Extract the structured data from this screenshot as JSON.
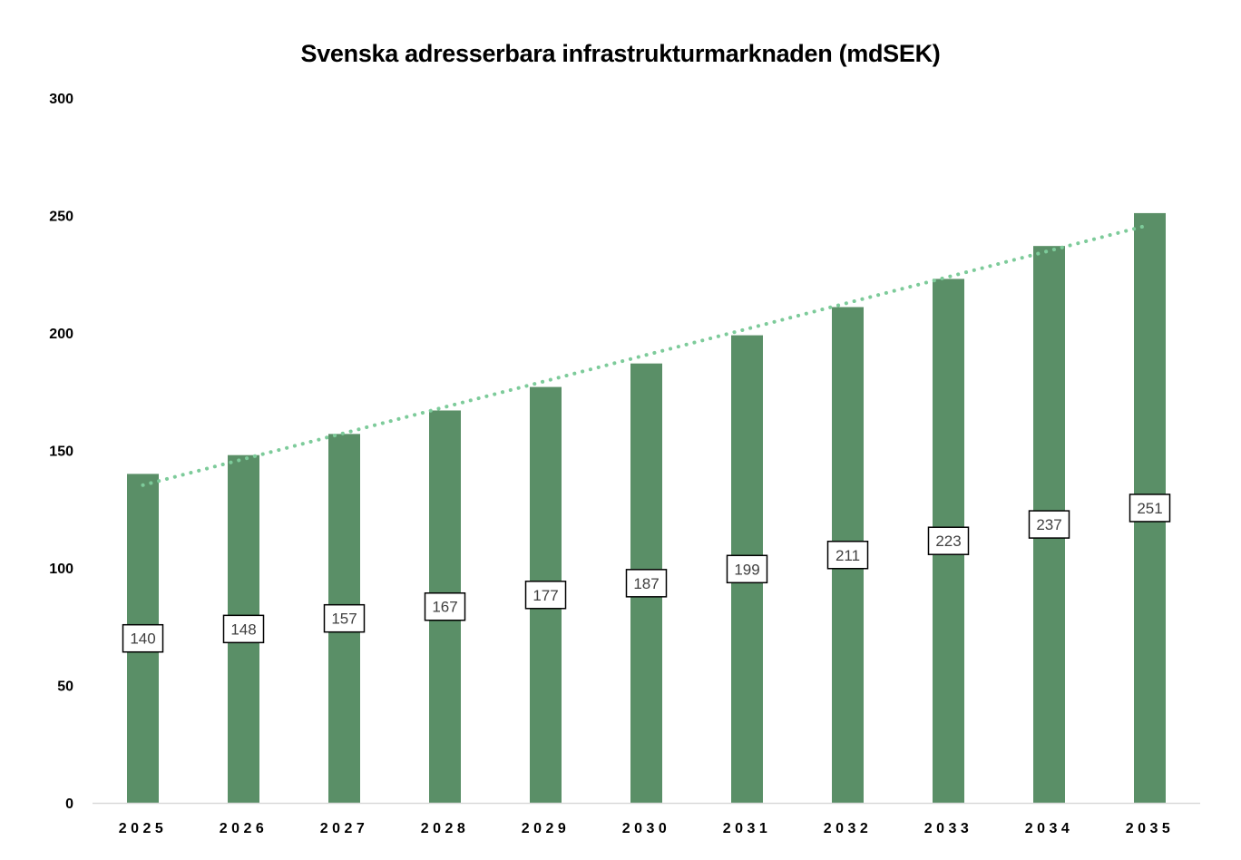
{
  "chart_data": {
    "type": "bar",
    "title": "Svenska adresserbara infrastrukturmarknaden (mdSEK)",
    "xlabel": "",
    "ylabel": "",
    "categories": [
      "2025",
      "2026",
      "2027",
      "2028",
      "2029",
      "2030",
      "2031",
      "2032",
      "2033",
      "2034",
      "2035"
    ],
    "values": [
      140,
      148,
      157,
      167,
      177,
      187,
      199,
      211,
      223,
      237,
      251
    ],
    "data_labels": [
      "140",
      "148",
      "157",
      "167",
      "177",
      "187",
      "199",
      "211",
      "223",
      "237",
      "251"
    ],
    "ylim": [
      0,
      300
    ],
    "yticks": [
      "0",
      "50",
      "100",
      "150",
      "200",
      "250",
      "300"
    ],
    "grid": false,
    "legend": "none",
    "trendline": {
      "type": "linear",
      "style": "dotted",
      "color": "#7DCB9A"
    },
    "colors": {
      "bar": "#5A8F67",
      "trendline": "#7DCB9A",
      "axis": "#D9D9D9",
      "label_border": "#000000",
      "label_text": "#404040"
    }
  }
}
